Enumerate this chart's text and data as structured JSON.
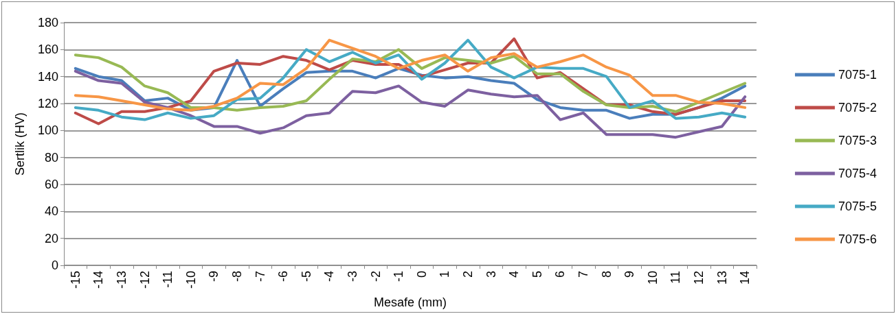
{
  "chart_data": {
    "type": "line",
    "xlabel": "Mesafe (mm)",
    "ylabel": "Sertlik (HV)",
    "categories": [
      "-15",
      "-14",
      "-13",
      "-12",
      "-11",
      "-10",
      "-9",
      "-8",
      "-7",
      "-6",
      "-5",
      "-4",
      "-3",
      "-2",
      "-1",
      "0",
      "1",
      "2",
      "3",
      "4",
      "5",
      "6",
      "7",
      "8",
      "9",
      "10",
      "11",
      "12",
      "13",
      "14"
    ],
    "series": [
      {
        "name": "7075-1",
        "color": "#4a7ebb",
        "values": [
          146,
          140,
          137,
          122,
          124,
          115,
          117,
          152,
          118,
          131,
          143,
          144,
          144,
          139,
          146,
          141,
          139,
          140,
          137,
          135,
          123,
          117,
          115,
          115,
          109,
          112,
          112,
          117,
          124,
          133
        ]
      },
      {
        "name": "7075-2",
        "color": "#be4b48",
        "values": [
          113,
          105,
          114,
          114,
          117,
          122,
          144,
          150,
          149,
          155,
          152,
          145,
          152,
          149,
          149,
          140,
          145,
          150,
          150,
          168,
          139,
          143,
          131,
          119,
          119,
          114,
          112,
          117,
          122,
          122
        ]
      },
      {
        "name": "7075-3",
        "color": "#98b954",
        "values": [
          156,
          154,
          147,
          133,
          128,
          117,
          117,
          115,
          117,
          118,
          122,
          138,
          153,
          151,
          160,
          146,
          154,
          152,
          150,
          155,
          142,
          142,
          129,
          119,
          117,
          118,
          114,
          121,
          128,
          135
        ]
      },
      {
        "name": "7075-4",
        "color": "#7d60a0",
        "values": [
          144,
          137,
          135,
          121,
          117,
          111,
          103,
          103,
          98,
          102,
          111,
          113,
          129,
          128,
          133,
          121,
          118,
          130,
          127,
          125,
          126,
          108,
          113,
          97,
          97,
          97,
          95,
          99,
          103,
          125
        ]
      },
      {
        "name": "7075-5",
        "color": "#46aac5",
        "values": [
          117,
          115,
          110,
          108,
          113,
          109,
          111,
          123,
          124,
          139,
          160,
          151,
          158,
          150,
          156,
          138,
          150,
          167,
          147,
          139,
          147,
          146,
          146,
          140,
          117,
          122,
          109,
          110,
          113,
          110
        ]
      },
      {
        "name": "7075-6",
        "color": "#f79646",
        "values": [
          126,
          125,
          122,
          119,
          116,
          115,
          118,
          124,
          135,
          134,
          146,
          167,
          161,
          155,
          146,
          152,
          156,
          144,
          154,
          157,
          147,
          151,
          156,
          147,
          141,
          126,
          126,
          121,
          120,
          117
        ]
      }
    ],
    "ylim": [
      0,
      180
    ],
    "yticks": [
      0,
      20,
      40,
      60,
      80,
      100,
      120,
      140,
      160,
      180
    ],
    "grid": "y",
    "legend": "right",
    "marker": "none",
    "line_style": "solid"
  }
}
